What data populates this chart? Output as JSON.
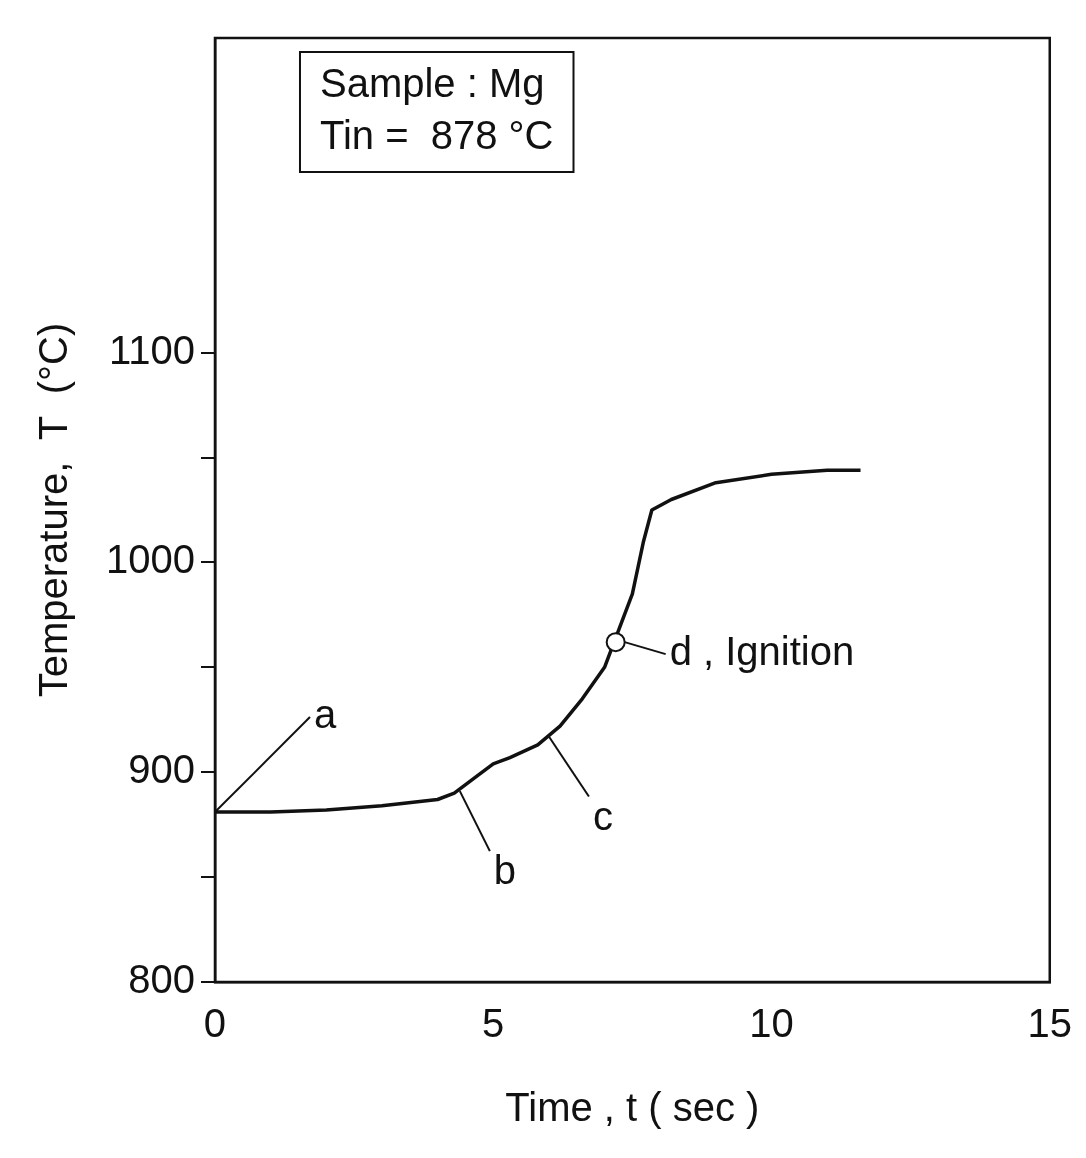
{
  "chart_data": {
    "type": "line",
    "xlabel": "Time , t ( sec )",
    "ylabel": "Temperature,  T  (°C)",
    "x": [
      0,
      1,
      2,
      3,
      4,
      4.3,
      4.7,
      5.0,
      5.3,
      5.8,
      6.2,
      6.6,
      7.0,
      7.5,
      7.7,
      7.85,
      8.2,
      9,
      10,
      11,
      11.6
    ],
    "series": [
      {
        "color": "#111111",
        "values": [
          881,
          881,
          882,
          884,
          887,
          890,
          898,
          904,
          907,
          913,
          922,
          935,
          950,
          985,
          1010,
          1025,
          1030,
          1038,
          1042,
          1044,
          1044
        ]
      }
    ],
    "xlim": [
      0,
      15
    ],
    "xticks": [
      0,
      5,
      10,
      15
    ],
    "ylim": [
      800,
      1250
    ],
    "yticks": [
      800,
      {
        "value": 850,
        "label": null
      },
      900,
      {
        "value": 950,
        "label": null
      },
      1000,
      {
        "value": 1050,
        "label": null
      },
      1100
    ],
    "grid": false,
    "legend": false,
    "marker": "none",
    "line_style": "solid",
    "annotations": [
      "Sample : Mg",
      "Tin =  878 °C",
      {
        "text": "a",
        "x": 0,
        "y": 881
      },
      {
        "text": "b",
        "x": 4.4,
        "y": 891
      },
      {
        "text": "c",
        "x": 6.0,
        "y": 917
      },
      {
        "text": "d , Ignition",
        "x": 7.2,
        "y": 962
      }
    ]
  }
}
